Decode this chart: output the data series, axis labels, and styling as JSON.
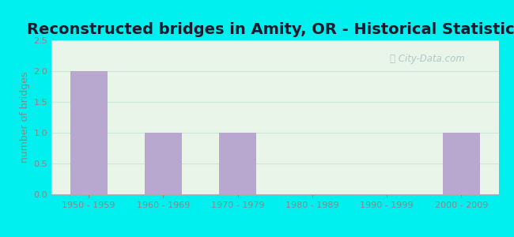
{
  "title": "Reconstructed bridges in Amity, OR - Historical Statistics",
  "categories": [
    "1950 - 1959",
    "1960 - 1969",
    "1970 - 1979",
    "1980 - 1989",
    "1990 - 1999",
    "2000 - 2009"
  ],
  "values": [
    2,
    1,
    1,
    0,
    0,
    1
  ],
  "bar_color": "#b8a8d0",
  "ylabel": "number of bridges",
  "ylim": [
    0,
    2.5
  ],
  "yticks": [
    0,
    0.5,
    1,
    1.5,
    2,
    2.5
  ],
  "background_color": "#00f0f0",
  "plot_bg_top": "#e8f5e8",
  "plot_bg_bottom": "#dff5ee",
  "grid_color": "#c8e8d8",
  "title_fontsize": 14,
  "axis_label_fontsize": 9,
  "tick_fontsize": 8,
  "watermark_text": "City-Data.com",
  "watermark_color": "#a8c4c4",
  "tick_color": "#888888"
}
